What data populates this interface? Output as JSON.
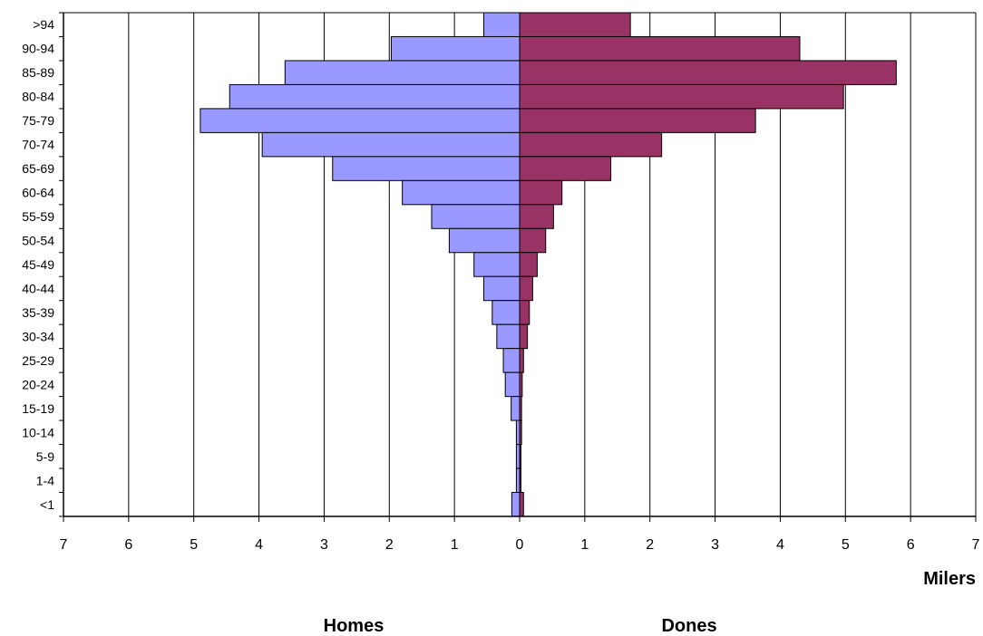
{
  "chart_data": {
    "type": "bar",
    "orientation": "horizontal-population-pyramid",
    "categories": [
      ">94",
      "90-94",
      "85-89",
      "80-84",
      "75-79",
      "70-74",
      "65-69",
      "60-64",
      "55-59",
      "50-54",
      "45-49",
      "40-44",
      "35-39",
      "30-34",
      "25-29",
      "20-24",
      "15-19",
      "10-14",
      "5-9",
      "1-4",
      "<1"
    ],
    "series": [
      {
        "name": "Homes",
        "side": "left",
        "color": "#9999ff",
        "values": [
          0.55,
          1.97,
          3.6,
          4.45,
          4.9,
          3.95,
          2.87,
          1.8,
          1.35,
          1.08,
          0.7,
          0.55,
          0.42,
          0.35,
          0.25,
          0.22,
          0.13,
          0.05,
          0.05,
          0.05,
          0.12
        ]
      },
      {
        "name": "Dones",
        "side": "right",
        "color": "#993366",
        "values": [
          1.7,
          4.3,
          5.78,
          4.97,
          3.62,
          2.18,
          1.4,
          0.65,
          0.52,
          0.4,
          0.27,
          0.2,
          0.15,
          0.12,
          0.06,
          0.04,
          0.03,
          0.03,
          0.02,
          0.02,
          0.06
        ]
      }
    ],
    "xlim": [
      -7,
      7
    ],
    "xticks": [
      "7",
      "6",
      "5",
      "4",
      "3",
      "2",
      "1",
      "0",
      "1",
      "2",
      "3",
      "4",
      "5",
      "6",
      "7"
    ],
    "xlabel": "Milers",
    "grid": "vertical",
    "legend": "none"
  }
}
